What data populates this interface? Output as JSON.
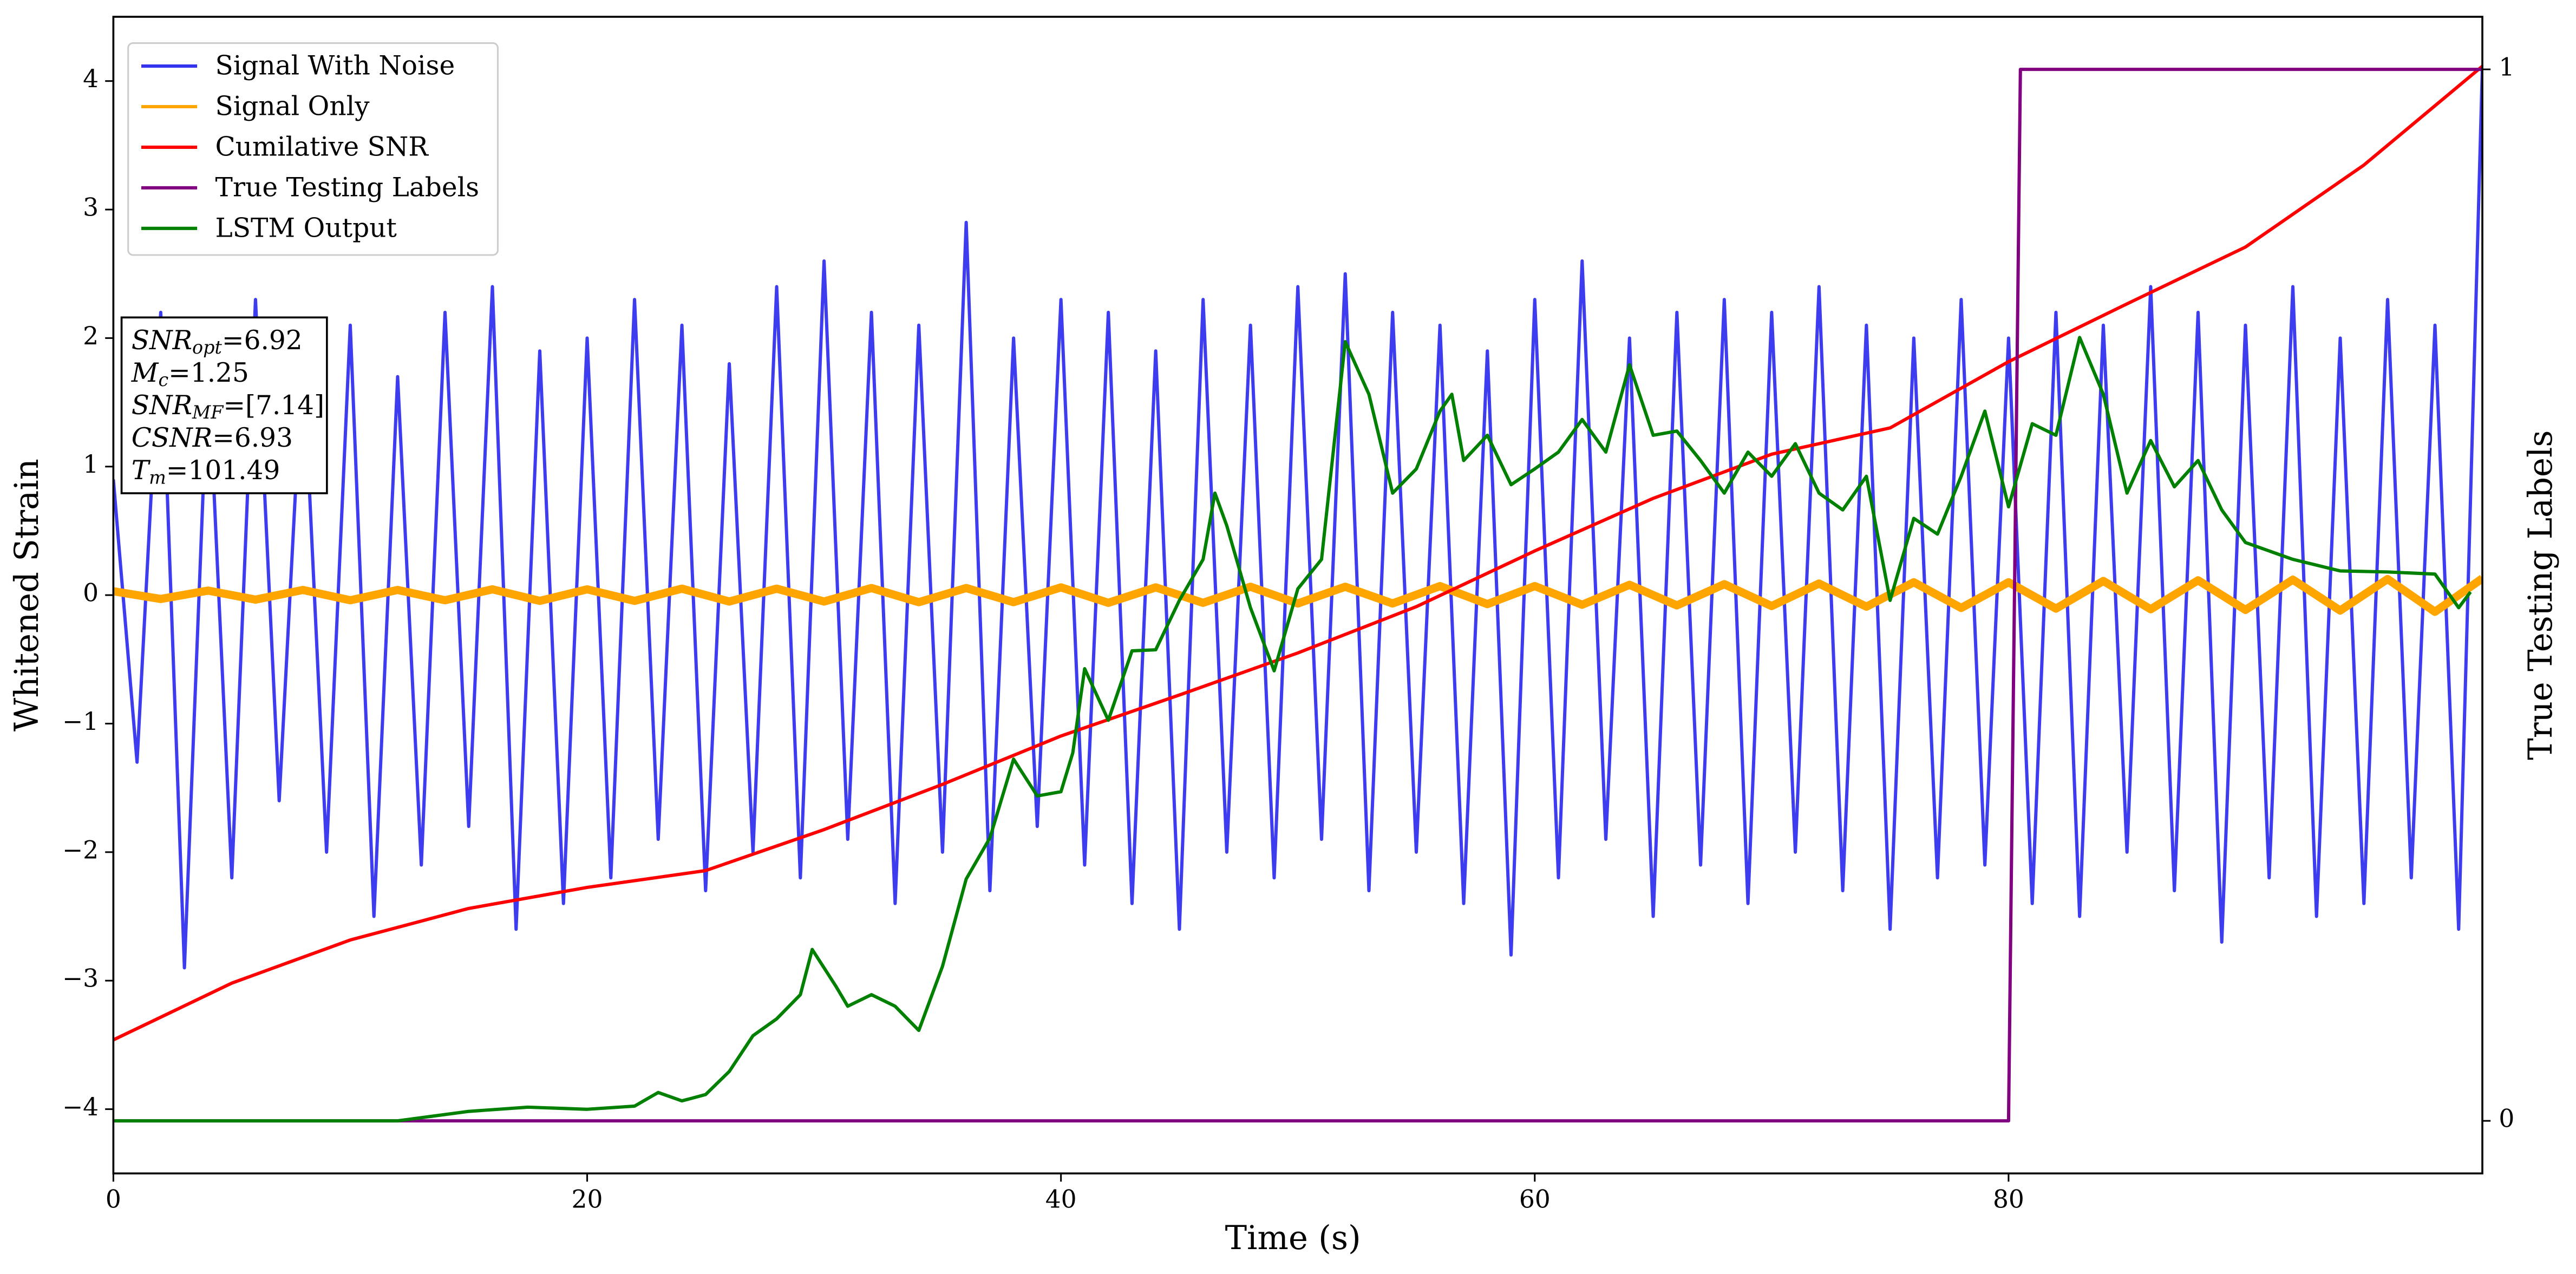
{
  "chart_data": {
    "type": "line",
    "xlabel": "Time (s)",
    "ylabel": "Whitened Strain",
    "y2label": "True Testing Labels",
    "xlim": [
      0,
      100
    ],
    "ylim": [
      -4.5,
      4.5
    ],
    "y2lim": [
      -0.05,
      1.05
    ],
    "xticks": [
      0,
      20,
      40,
      60,
      80
    ],
    "yticks": [
      {
        "value": -4,
        "label": "−4"
      },
      {
        "value": -3,
        "label": "−3"
      },
      {
        "value": -2,
        "label": "−2"
      },
      {
        "value": -1,
        "label": "−1"
      },
      0,
      1,
      2,
      3,
      4
    ],
    "y2ticks": [
      0,
      1
    ],
    "legend": "upper left",
    "annotations": [
      {
        "base": "SNR",
        "sub": "opt",
        "rest": "=6.92"
      },
      {
        "base": "M",
        "sub": "c",
        "rest": "=1.25"
      },
      {
        "base": "SNR",
        "sub": "MF",
        "rest": "=[7.14]"
      },
      {
        "base": "CSNR",
        "sub": null,
        "rest": "=6.93"
      },
      {
        "base": "T",
        "sub": "m",
        "rest": "=101.49"
      }
    ],
    "series": [
      {
        "name": "Signal With Noise",
        "color": "#3333ee",
        "x": [
          0,
          1,
          2,
          3,
          4,
          5,
          6,
          7,
          8,
          9,
          10,
          11,
          12,
          13,
          14,
          15,
          16,
          17,
          18,
          19,
          20,
          21,
          22,
          23,
          24,
          25,
          26,
          27,
          28,
          29,
          30,
          31,
          32,
          33,
          34,
          35,
          36,
          37,
          38,
          39,
          40,
          41,
          42,
          43,
          44,
          45,
          46,
          47,
          48,
          49,
          50,
          51,
          52,
          53,
          54,
          55,
          56,
          57,
          58,
          59,
          60,
          61,
          62,
          63,
          64,
          65,
          66,
          67,
          68,
          69,
          70,
          71,
          72,
          73,
          74,
          75,
          76,
          77,
          78,
          79,
          80,
          81,
          82,
          83,
          84,
          85,
          86,
          87,
          88,
          89,
          90,
          91,
          92,
          93,
          94,
          95,
          96,
          97,
          98,
          99,
          100
        ],
        "values": [
          0.9,
          -1.3,
          2.2,
          -2.9,
          1.8,
          -2.2,
          2.3,
          -1.6,
          1.9,
          -2.0,
          2.1,
          -2.5,
          1.7,
          -2.1,
          2.2,
          -1.8,
          2.4,
          -2.6,
          1.9,
          -2.4,
          2.0,
          -2.2,
          2.3,
          -1.9,
          2.1,
          -2.3,
          1.8,
          -2.0,
          2.4,
          -2.2,
          2.6,
          -1.9,
          2.2,
          -2.4,
          2.1,
          -2.0,
          2.9,
          -2.3,
          2.0,
          -1.8,
          2.3,
          -2.1,
          2.2,
          -2.4,
          1.9,
          -2.6,
          2.3,
          -2.0,
          2.1,
          -2.2,
          2.4,
          -1.9,
          2.5,
          -2.3,
          2.2,
          -2.0,
          2.1,
          -2.4,
          1.9,
          -2.8,
          2.3,
          -2.2,
          2.6,
          -1.9,
          2.0,
          -2.5,
          2.2,
          -2.1,
          2.3,
          -2.4,
          2.2,
          -2.0,
          2.4,
          -2.3,
          2.1,
          -2.6,
          2.0,
          -2.2,
          2.3,
          -2.1,
          2.0,
          -2.4,
          2.2,
          -2.5,
          2.1,
          -2.0,
          2.4,
          -2.3,
          2.2,
          -2.7,
          2.1,
          -2.2,
          2.4,
          -2.5,
          2.0,
          -2.4,
          2.3,
          -2.2,
          2.1,
          -2.6,
          4.1
        ]
      },
      {
        "name": "Signal Only",
        "color": "#ffa500",
        "x": [
          0,
          2,
          4,
          6,
          8,
          10,
          12,
          14,
          16,
          18,
          20,
          22,
          24,
          26,
          28,
          30,
          32,
          34,
          36,
          38,
          40,
          42,
          44,
          46,
          48,
          50,
          52,
          54,
          56,
          58,
          60,
          62,
          64,
          66,
          68,
          70,
          72,
          74,
          76,
          78,
          80,
          82,
          84,
          86,
          88,
          90,
          92,
          94,
          96,
          98,
          100
        ],
        "values": [
          0.03,
          -0.03,
          0.035,
          -0.035,
          0.04,
          -0.04,
          0.04,
          -0.04,
          0.045,
          -0.045,
          0.045,
          -0.045,
          0.05,
          -0.05,
          0.05,
          -0.05,
          0.055,
          -0.055,
          0.055,
          -0.055,
          0.06,
          -0.06,
          0.06,
          -0.06,
          0.065,
          -0.065,
          0.065,
          -0.065,
          0.07,
          -0.07,
          0.07,
          -0.075,
          0.08,
          -0.08,
          0.085,
          -0.085,
          0.09,
          -0.09,
          0.1,
          -0.1,
          0.1,
          -0.105,
          0.11,
          -0.11,
          0.115,
          -0.115,
          0.12,
          -0.12,
          0.125,
          -0.13,
          0.13
        ]
      },
      {
        "name": "Cumilative SNR",
        "color": "#ff0000",
        "axis": "y2",
        "x": [
          0,
          5,
          10,
          15,
          20,
          25,
          30,
          35,
          40,
          45,
          50,
          55,
          60,
          65,
          70,
          75,
          80,
          85,
          90,
          95,
          100
        ],
        "values": [
          0.077,
          0.131,
          0.172,
          0.202,
          0.222,
          0.238,
          0.277,
          0.32,
          0.366,
          0.405,
          0.445,
          0.489,
          0.542,
          0.592,
          0.634,
          0.659,
          0.722,
          0.777,
          0.831,
          0.909,
          1.003
        ]
      },
      {
        "name": "True Testing Labels",
        "color": "#800080",
        "axis": "y2",
        "x": [
          0,
          80,
          80.5,
          100
        ],
        "values": [
          0,
          0,
          1,
          1
        ]
      },
      {
        "name": "LSTM Output",
        "color": "#008000",
        "axis": "y2",
        "x": [
          0,
          12,
          15,
          17.5,
          20,
          22,
          23,
          24,
          25,
          26,
          27,
          28,
          29,
          29.5,
          30.5,
          31,
          32,
          33,
          34,
          35,
          36,
          37,
          38,
          39,
          40,
          40.5,
          41,
          42,
          43,
          44,
          45,
          46,
          46.5,
          47,
          48,
          49,
          50,
          51,
          52,
          53,
          54,
          55,
          56,
          56.5,
          57,
          58,
          59,
          60,
          61,
          62,
          63,
          64,
          65,
          66,
          67,
          68,
          69,
          70,
          71,
          72,
          73,
          74,
          75,
          76,
          77,
          78,
          79,
          80,
          81,
          82,
          83,
          84,
          85,
          86,
          87,
          88,
          89,
          90,
          92,
          94,
          96,
          98,
          99,
          99.5
        ],
        "values": [
          0,
          0,
          0.009,
          0.013,
          0.011,
          0.014,
          0.027,
          0.019,
          0.025,
          0.047,
          0.081,
          0.097,
          0.12,
          0.163,
          0.128,
          0.109,
          0.12,
          0.109,
          0.086,
          0.147,
          0.23,
          0.269,
          0.344,
          0.309,
          0.313,
          0.35,
          0.43,
          0.381,
          0.447,
          0.448,
          0.495,
          0.534,
          0.597,
          0.566,
          0.488,
          0.428,
          0.506,
          0.534,
          0.741,
          0.691,
          0.597,
          0.62,
          0.675,
          0.691,
          0.628,
          0.652,
          0.605,
          0.62,
          0.636,
          0.667,
          0.636,
          0.719,
          0.652,
          0.656,
          0.628,
          0.597,
          0.636,
          0.613,
          0.644,
          0.597,
          0.581,
          0.613,
          0.495,
          0.573,
          0.558,
          0.613,
          0.675,
          0.584,
          0.663,
          0.652,
          0.745,
          0.691,
          0.597,
          0.647,
          0.603,
          0.628,
          0.581,
          0.55,
          0.534,
          0.523,
          0.522,
          0.52,
          0.488,
          0.503
        ]
      }
    ]
  }
}
